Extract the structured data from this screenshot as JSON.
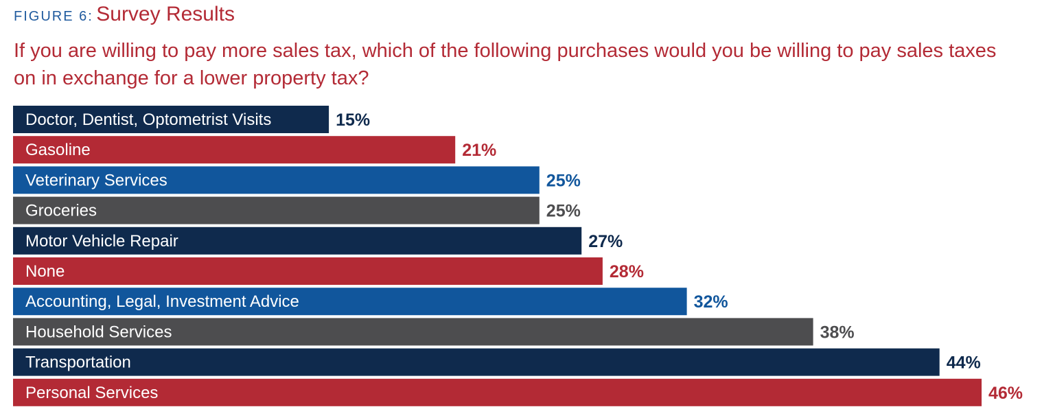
{
  "figure": {
    "label": "FIGURE 6:",
    "title": "Survey Results",
    "question": "If you are willing to pay more sales tax, which of the following purchases would you be willing to pay sales taxes on in exchange for a lower property tax?"
  },
  "colors": {
    "navy": "#0f2a4d",
    "red": "#b32a35",
    "blue": "#11569c",
    "gray": "#4d4d4f"
  },
  "chart_data": {
    "type": "bar",
    "orientation": "horizontal",
    "title": "Survey Results",
    "xlim": [
      0,
      46
    ],
    "grid": false,
    "categories": [
      "Doctor, Dentist, Optometrist Visits",
      "Gasoline",
      "Veterinary Services",
      "Groceries",
      "Motor Vehicle Repair",
      "None",
      "Accounting, Legal, Investment Advice",
      "Household Services",
      "Transportation",
      "Personal Services"
    ],
    "values": [
      15,
      21,
      25,
      25,
      27,
      28,
      32,
      38,
      44,
      46
    ],
    "value_labels": [
      "15%",
      "21%",
      "25%",
      "25%",
      "27%",
      "28%",
      "32%",
      "38%",
      "44%",
      "46%"
    ],
    "bar_colors": [
      "#0f2a4d",
      "#b32a35",
      "#11569c",
      "#4d4d4f",
      "#0f2a4d",
      "#b32a35",
      "#11569c",
      "#4d4d4f",
      "#0f2a4d",
      "#b32a35"
    ]
  }
}
